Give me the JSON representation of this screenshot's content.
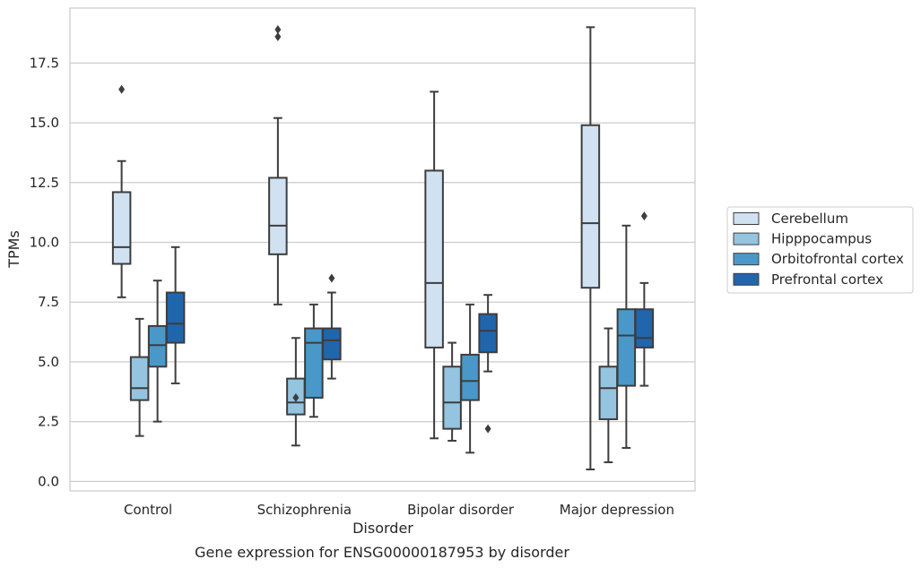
{
  "chart_data": {
    "type": "box",
    "xlabel": "Disorder",
    "ylabel": "TPMs",
    "caption": "Gene expression for ENSG00000187953 by disorder",
    "ylim": [
      -0.4,
      19.8
    ],
    "yticks": [
      0.0,
      2.5,
      5.0,
      7.5,
      10.0,
      12.5,
      15.0,
      17.5
    ],
    "ytick_labels": [
      "0.0",
      "2.5",
      "5.0",
      "7.5",
      "10.0",
      "12.5",
      "15.0",
      "17.5"
    ],
    "grid": "horizontal",
    "legend_position": "right",
    "categories": [
      "Control",
      "Schizophrenia",
      "Bipolar disorder",
      "Major depression"
    ],
    "series": [
      {
        "name": "Cerebellum",
        "color": "#d0e1f2",
        "boxes": [
          {
            "whislo": 7.7,
            "q1": 9.1,
            "med": 9.8,
            "q3": 12.1,
            "whishi": 13.4,
            "fliers": [
              16.4
            ]
          },
          {
            "whislo": 7.4,
            "q1": 9.5,
            "med": 10.7,
            "q3": 12.7,
            "whishi": 15.2,
            "fliers": [
              18.6,
              18.9
            ]
          },
          {
            "whislo": 1.8,
            "q1": 5.6,
            "med": 8.3,
            "q3": 13.0,
            "whishi": 16.3,
            "fliers": []
          },
          {
            "whislo": 0.5,
            "q1": 8.1,
            "med": 10.8,
            "q3": 14.9,
            "whishi": 19.0,
            "fliers": []
          }
        ]
      },
      {
        "name": "Hipppocampus",
        "color": "#94c4df",
        "boxes": [
          {
            "whislo": 1.9,
            "q1": 3.4,
            "med": 3.9,
            "q3": 5.2,
            "whishi": 6.8,
            "fliers": []
          },
          {
            "whislo": 1.5,
            "q1": 2.8,
            "med": 3.3,
            "q3": 4.3,
            "whishi": 6.0,
            "fliers": [
              3.5
            ]
          },
          {
            "whislo": 1.7,
            "q1": 2.2,
            "med": 3.3,
            "q3": 4.8,
            "whishi": 5.8,
            "fliers": []
          },
          {
            "whislo": 0.8,
            "q1": 2.6,
            "med": 3.9,
            "q3": 4.8,
            "whishi": 6.4,
            "fliers": []
          }
        ]
      },
      {
        "name": "Orbitofrontal cortex",
        "color": "#4a98c9",
        "boxes": [
          {
            "whislo": 2.5,
            "q1": 4.8,
            "med": 5.7,
            "q3": 6.5,
            "whishi": 8.4,
            "fliers": []
          },
          {
            "whislo": 2.7,
            "q1": 3.5,
            "med": 5.8,
            "q3": 6.4,
            "whishi": 7.4,
            "fliers": []
          },
          {
            "whislo": 1.2,
            "q1": 3.4,
            "med": 4.2,
            "q3": 5.3,
            "whishi": 7.4,
            "fliers": []
          },
          {
            "whislo": 1.4,
            "q1": 4.0,
            "med": 6.1,
            "q3": 7.2,
            "whishi": 10.7,
            "fliers": []
          }
        ]
      },
      {
        "name": "Prefrontal cortex",
        "color": "#2066ac",
        "boxes": [
          {
            "whislo": 4.1,
            "q1": 5.8,
            "med": 6.6,
            "q3": 7.9,
            "whishi": 9.8,
            "fliers": []
          },
          {
            "whislo": 4.3,
            "q1": 5.1,
            "med": 5.9,
            "q3": 6.4,
            "whishi": 7.9,
            "fliers": [
              8.5
            ]
          },
          {
            "whislo": 4.6,
            "q1": 5.4,
            "med": 6.3,
            "q3": 7.0,
            "whishi": 7.8,
            "fliers": [
              2.2
            ]
          },
          {
            "whislo": 4.0,
            "q1": 5.6,
            "med": 6.0,
            "q3": 7.2,
            "whishi": 8.3,
            "fliers": [
              11.1
            ]
          }
        ]
      }
    ]
  }
}
